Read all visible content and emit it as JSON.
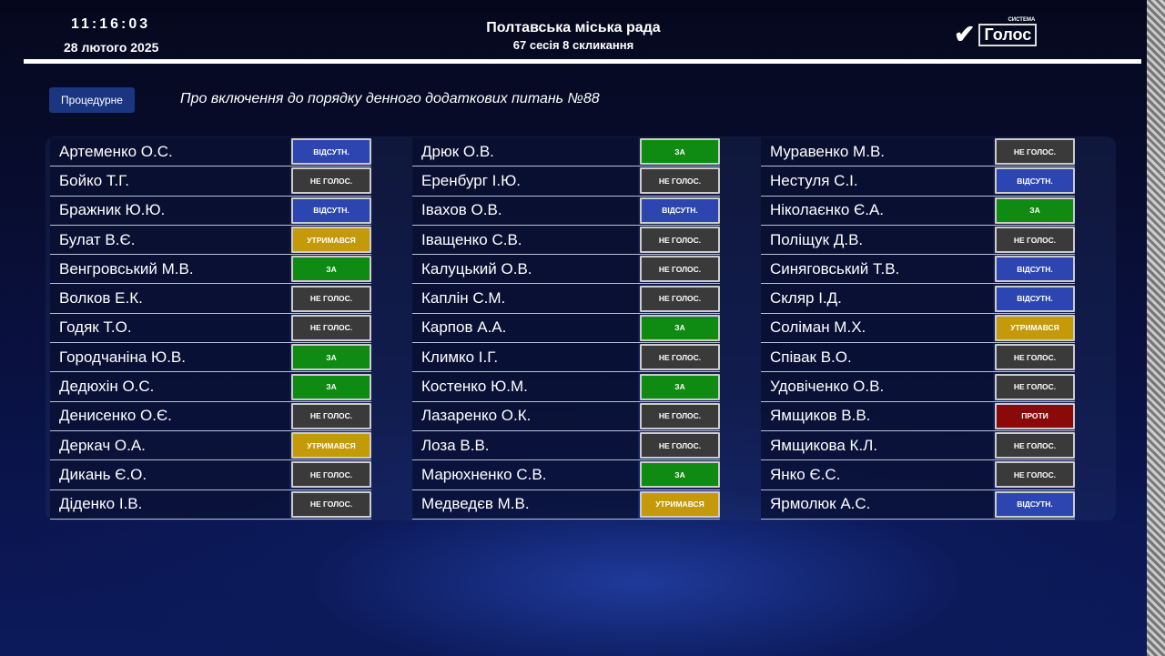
{
  "header": {
    "time": "11:16:03",
    "date": "28 лютого 2025",
    "title": "Полтавська міська рада",
    "session": "67 сесія 8 скликання",
    "logo_text": "Голос",
    "logo_small": "СИСТЕМА"
  },
  "question": {
    "type": "Процедурне",
    "text": "Про включення до порядку денного додаткових питань №88"
  },
  "vote_colors": {
    "ЗА": "#0f8a12",
    "НЕ ГОЛОС.": "#3a3a3a",
    "ВІДСУТН.": "#2c45b0",
    "УТРИМАВСЯ": "#c49a0a",
    "ПРОТИ": "#8a0a0a"
  },
  "columns": [
    [
      {
        "name": "Артеменко О.С.",
        "vote": "ВІДСУТН."
      },
      {
        "name": "Бойко Т.Г.",
        "vote": "НЕ ГОЛОС."
      },
      {
        "name": "Бражник Ю.Ю.",
        "vote": "ВІДСУТН."
      },
      {
        "name": "Булат В.Є.",
        "vote": "УТРИМАВСЯ"
      },
      {
        "name": "Венгровський М.В.",
        "vote": "ЗА"
      },
      {
        "name": "Волков Е.К.",
        "vote": "НЕ ГОЛОС."
      },
      {
        "name": "Годяк Т.О.",
        "vote": "НЕ ГОЛОС."
      },
      {
        "name": "Городчаніна Ю.В.",
        "vote": "ЗА"
      },
      {
        "name": "Дедюхін О.С.",
        "vote": "ЗА"
      },
      {
        "name": "Денисенко О.Є.",
        "vote": "НЕ ГОЛОС."
      },
      {
        "name": "Деркач О.А.",
        "vote": "УТРИМАВСЯ"
      },
      {
        "name": "Дикань Є.О.",
        "vote": "НЕ ГОЛОС."
      },
      {
        "name": "Діденко І.В.",
        "vote": "НЕ ГОЛОС."
      }
    ],
    [
      {
        "name": "Дрюк О.В.",
        "vote": "ЗА"
      },
      {
        "name": "Еренбург І.Ю.",
        "vote": "НЕ ГОЛОС."
      },
      {
        "name": "Івахов О.В.",
        "vote": "ВІДСУТН."
      },
      {
        "name": "Іващенко С.В.",
        "vote": "НЕ ГОЛОС."
      },
      {
        "name": "Калуцький О.В.",
        "vote": "НЕ ГОЛОС."
      },
      {
        "name": "Каплін С.М.",
        "vote": "НЕ ГОЛОС."
      },
      {
        "name": "Карпов А.А.",
        "vote": "ЗА"
      },
      {
        "name": "Климко І.Г.",
        "vote": "НЕ ГОЛОС."
      },
      {
        "name": "Костенко Ю.М.",
        "vote": "ЗА"
      },
      {
        "name": "Лазаренко О.К.",
        "vote": "НЕ ГОЛОС."
      },
      {
        "name": "Лоза В.В.",
        "vote": "НЕ ГОЛОС."
      },
      {
        "name": "Марюхненко С.В.",
        "vote": "ЗА"
      },
      {
        "name": "Медведєв М.В.",
        "vote": "УТРИМАВСЯ"
      }
    ],
    [
      {
        "name": "Муравенко М.В.",
        "vote": "НЕ ГОЛОС."
      },
      {
        "name": "Нестуля С.І.",
        "vote": "ВІДСУТН."
      },
      {
        "name": "Ніколаєнко Є.А.",
        "vote": "ЗА"
      },
      {
        "name": "Поліщук Д.В.",
        "vote": "НЕ ГОЛОС."
      },
      {
        "name": "Синяговський Т.В.",
        "vote": "ВІДСУТН."
      },
      {
        "name": "Скляр І.Д.",
        "vote": "ВІДСУТН."
      },
      {
        "name": "Соліман М.Х.",
        "vote": "УТРИМАВСЯ"
      },
      {
        "name": "Співак В.О.",
        "vote": "НЕ ГОЛОС."
      },
      {
        "name": "Удовіченко О.В.",
        "vote": "НЕ ГОЛОС."
      },
      {
        "name": "Ямщиков В.В.",
        "vote": "ПРОТИ"
      },
      {
        "name": "Ямщикова К.Л.",
        "vote": "НЕ ГОЛОС."
      },
      {
        "name": "Янко Є.С.",
        "vote": "НЕ ГОЛОС."
      },
      {
        "name": "Ярмолюк А.С.",
        "vote": "ВІДСУТН."
      }
    ]
  ]
}
